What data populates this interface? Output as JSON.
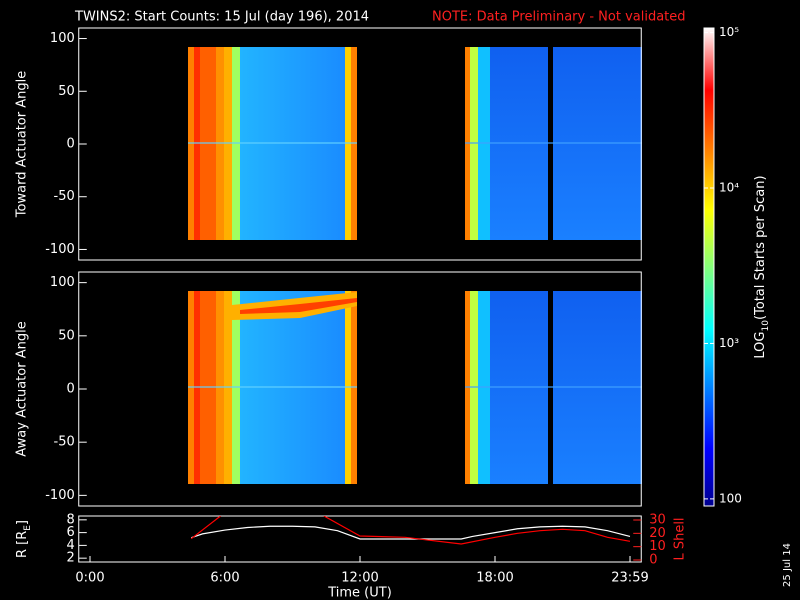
{
  "title": "TWINS2: Start Counts: 15 Jul (day 196), 2014",
  "note": "NOTE: Data Preliminary - Not validated",
  "date_stamp": "25 Jul 14",
  "chart_data": [
    {
      "type": "heatmap",
      "ylabel": "Toward Actuator Angle",
      "xlim": [
        -0.5,
        24.5
      ],
      "ylim": [
        -110,
        110
      ],
      "yticks": [
        -100,
        -50,
        0,
        50,
        100
      ]
    },
    {
      "type": "heatmap",
      "ylabel": "Away Actuator Angle",
      "xlim": [
        -0.5,
        24.5
      ],
      "ylim": [
        -110,
        110
      ],
      "yticks": [
        -100,
        -50,
        0,
        50,
        100
      ]
    },
    {
      "type": "line",
      "xlabel": "Time (UT)",
      "ylabel": "R [R",
      "ylabel_sub": "E",
      "ylabel_end": "]",
      "y2label": "L Shell",
      "xlim": [
        -0.5,
        24.5
      ],
      "xticks": [
        {
          "value": 0,
          "label": "0:00"
        },
        {
          "value": 6,
          "label": "6:00"
        },
        {
          "value": 12,
          "label": "12:00"
        },
        {
          "value": 18,
          "label": "18:00"
        },
        {
          "value": 24,
          "label": "23:59"
        }
      ],
      "ylim": [
        1.4,
        8.6
      ],
      "yticks": [
        2,
        4,
        6,
        8
      ],
      "y2lim": [
        -1.5,
        33
      ],
      "y2ticks": [
        0,
        10,
        20,
        30
      ],
      "series": [
        {
          "color": "#ffffff",
          "x": [
            4.5,
            5,
            6,
            7,
            8,
            9,
            10,
            11,
            12,
            14,
            16.5,
            17,
            18,
            19,
            20,
            21,
            22,
            23,
            24
          ],
          "values": [
            5.2,
            5.8,
            6.4,
            6.8,
            7,
            7,
            6.9,
            6.3,
            5,
            5,
            5,
            5.4,
            6,
            6.6,
            6.9,
            7,
            6.9,
            6.3,
            5.4
          ]
        },
        {
          "color": "#ff0000",
          "axis": "y2",
          "x": [
            4.5,
            5.8,
            8,
            10.4,
            12,
            14,
            16.5,
            18,
            19,
            20,
            21,
            22,
            23,
            24
          ],
          "values": [
            16,
            33,
            null,
            33,
            18,
            17,
            12,
            17,
            20,
            22,
            23,
            22,
            17,
            14
          ]
        }
      ]
    },
    {
      "type": "colorbar",
      "label": "LOG",
      "label_sub": "10",
      "label_end": "(Total Starts per Scan)",
      "log": true,
      "lim": [
        90,
        107000
      ],
      "ticks": [
        {
          "value": 100,
          "label": "100"
        },
        {
          "value": 1000,
          "label": "10³"
        },
        {
          "value": 10000,
          "label": "10⁴"
        },
        {
          "value": 100000,
          "label": "10⁵"
        }
      ]
    }
  ]
}
